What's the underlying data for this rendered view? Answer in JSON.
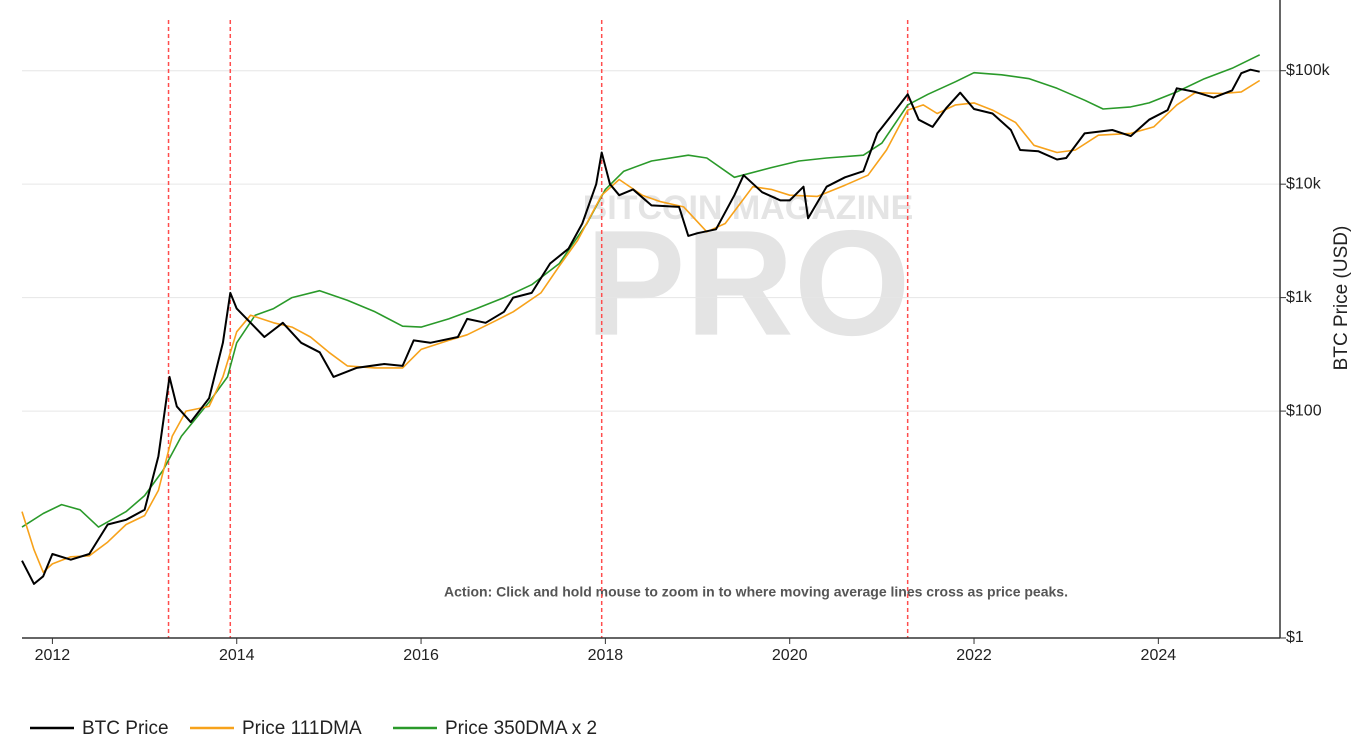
{
  "chart_data": {
    "type": "line",
    "y_label": "BTC Price (USD)",
    "annotation": "Action: Click and hold mouse to zoom in to where moving average lines cross as price peaks.",
    "watermark": [
      "BITCOIN MAGAZINE",
      "PRO"
    ],
    "xlim": [
      2011.67,
      2025.32
    ],
    "xticks": [
      2012,
      2014,
      2016,
      2018,
      2020,
      2022,
      2024
    ],
    "ylim": [
      1,
      420000
    ],
    "log_y": true,
    "grid": true,
    "yticks": [
      {
        "value": 1,
        "label": "$1"
      },
      {
        "value": 100,
        "label": "$100"
      },
      {
        "value": 1000,
        "label": "$1k"
      },
      {
        "value": 10000,
        "label": "$10k"
      },
      {
        "value": 100000,
        "label": "$100k"
      }
    ],
    "vlines": [
      2013.26,
      2013.93,
      2017.96,
      2021.28
    ],
    "vline_color": "#ff4d4d",
    "legend": "bottom-left",
    "series": [
      {
        "name": "BTC Price",
        "color": "#000000",
        "x": [
          2011.67,
          2011.8,
          2011.9,
          2012.0,
          2012.2,
          2012.4,
          2012.6,
          2012.8,
          2013.0,
          2013.15,
          2013.27,
          2013.35,
          2013.5,
          2013.7,
          2013.85,
          2013.93,
          2014.0,
          2014.15,
          2014.3,
          2014.5,
          2014.7,
          2014.9,
          2015.05,
          2015.3,
          2015.6,
          2015.8,
          2015.92,
          2016.1,
          2016.4,
          2016.5,
          2016.7,
          2016.9,
          2017.0,
          2017.2,
          2017.4,
          2017.6,
          2017.75,
          2017.9,
          2017.96,
          2018.05,
          2018.15,
          2018.3,
          2018.5,
          2018.8,
          2018.9,
          2019.0,
          2019.2,
          2019.4,
          2019.5,
          2019.7,
          2019.9,
          2020.0,
          2020.15,
          2020.2,
          2020.4,
          2020.6,
          2020.8,
          2020.95,
          2021.1,
          2021.28,
          2021.4,
          2021.55,
          2021.7,
          2021.85,
          2022.0,
          2022.2,
          2022.4,
          2022.5,
          2022.7,
          2022.9,
          2023.0,
          2023.2,
          2023.5,
          2023.7,
          2023.9,
          2024.1,
          2024.2,
          2024.4,
          2024.6,
          2024.8,
          2024.9,
          2025.0,
          2025.1
        ],
        "values": [
          4.8,
          3,
          3.5,
          5.5,
          4.9,
          5.5,
          10,
          11,
          13.5,
          40,
          200,
          110,
          80,
          130,
          400,
          1100,
          800,
          600,
          450,
          600,
          400,
          330,
          200,
          240,
          260,
          250,
          420,
          400,
          450,
          650,
          600,
          750,
          1000,
          1100,
          2000,
          2700,
          4500,
          10000,
          19000,
          10000,
          8000,
          9000,
          6500,
          6300,
          3500,
          3700,
          4000,
          8000,
          12000,
          8500,
          7200,
          7200,
          9500,
          5000,
          9500,
          11500,
          13000,
          28000,
          40000,
          62000,
          37000,
          32000,
          47000,
          64000,
          46000,
          42000,
          30000,
          20000,
          19500,
          16500,
          17000,
          28000,
          30000,
          26500,
          37000,
          45000,
          70000,
          65000,
          58000,
          67000,
          95000,
          102000,
          98000
        ]
      },
      {
        "name": "Price 111DMA",
        "color": "#f7a21b",
        "x": [
          2011.67,
          2011.8,
          2011.9,
          2012.0,
          2012.2,
          2012.4,
          2012.6,
          2012.8,
          2013.0,
          2013.15,
          2013.3,
          2013.45,
          2013.7,
          2013.85,
          2014.0,
          2014.15,
          2014.4,
          2014.6,
          2014.8,
          2015.0,
          2015.2,
          2015.5,
          2015.8,
          2016.0,
          2016.3,
          2016.5,
          2016.8,
          2017.0,
          2017.3,
          2017.5,
          2017.7,
          2017.96,
          2018.15,
          2018.4,
          2018.6,
          2018.85,
          2019.1,
          2019.3,
          2019.6,
          2019.8,
          2020.0,
          2020.3,
          2020.6,
          2020.85,
          2021.05,
          2021.28,
          2021.45,
          2021.6,
          2021.8,
          2022.0,
          2022.2,
          2022.45,
          2022.65,
          2022.9,
          2023.1,
          2023.35,
          2023.7,
          2023.95,
          2024.2,
          2024.4,
          2024.7,
          2024.9,
          2025.1
        ],
        "values": [
          13,
          6,
          3.8,
          4.5,
          5.2,
          5.3,
          7,
          10,
          12,
          20,
          60,
          100,
          110,
          200,
          500,
          700,
          600,
          550,
          450,
          330,
          250,
          240,
          240,
          350,
          420,
          470,
          620,
          750,
          1100,
          1900,
          3200,
          8000,
          11000,
          8000,
          7000,
          6300,
          3800,
          4500,
          9500,
          9000,
          8000,
          7800,
          9800,
          12000,
          20000,
          45000,
          50000,
          42000,
          50000,
          52000,
          45000,
          35000,
          22000,
          19000,
          20000,
          27000,
          28000,
          32000,
          50000,
          64000,
          63000,
          65000,
          82000
        ]
      },
      {
        "name": "Price 350DMA x 2",
        "color": "#2a9a2a",
        "x": [
          2011.67,
          2011.9,
          2012.1,
          2012.3,
          2012.5,
          2012.8,
          2013.0,
          2013.2,
          2013.4,
          2013.7,
          2013.9,
          2014.0,
          2014.2,
          2014.4,
          2014.6,
          2014.9,
          2015.2,
          2015.5,
          2015.8,
          2016.0,
          2016.3,
          2016.6,
          2016.9,
          2017.2,
          2017.5,
          2017.8,
          2018.0,
          2018.2,
          2018.5,
          2018.9,
          2019.1,
          2019.4,
          2019.8,
          2020.1,
          2020.4,
          2020.8,
          2021.0,
          2021.28,
          2021.5,
          2021.8,
          2022.0,
          2022.3,
          2022.6,
          2022.9,
          2023.2,
          2023.4,
          2023.7,
          2023.9,
          2024.2,
          2024.5,
          2024.8,
          2025.1
        ],
        "values": [
          9.5,
          12.5,
          15,
          13.5,
          9.5,
          13,
          18,
          30,
          60,
          120,
          200,
          400,
          700,
          800,
          1000,
          1150,
          950,
          750,
          560,
          550,
          650,
          800,
          1000,
          1300,
          2000,
          4500,
          9000,
          13000,
          16000,
          18000,
          17000,
          11500,
          14000,
          16000,
          17000,
          18000,
          23000,
          50000,
          62000,
          80000,
          96000,
          92000,
          85000,
          70000,
          55000,
          46000,
          48000,
          52000,
          65000,
          85000,
          105000,
          138000
        ]
      }
    ]
  }
}
